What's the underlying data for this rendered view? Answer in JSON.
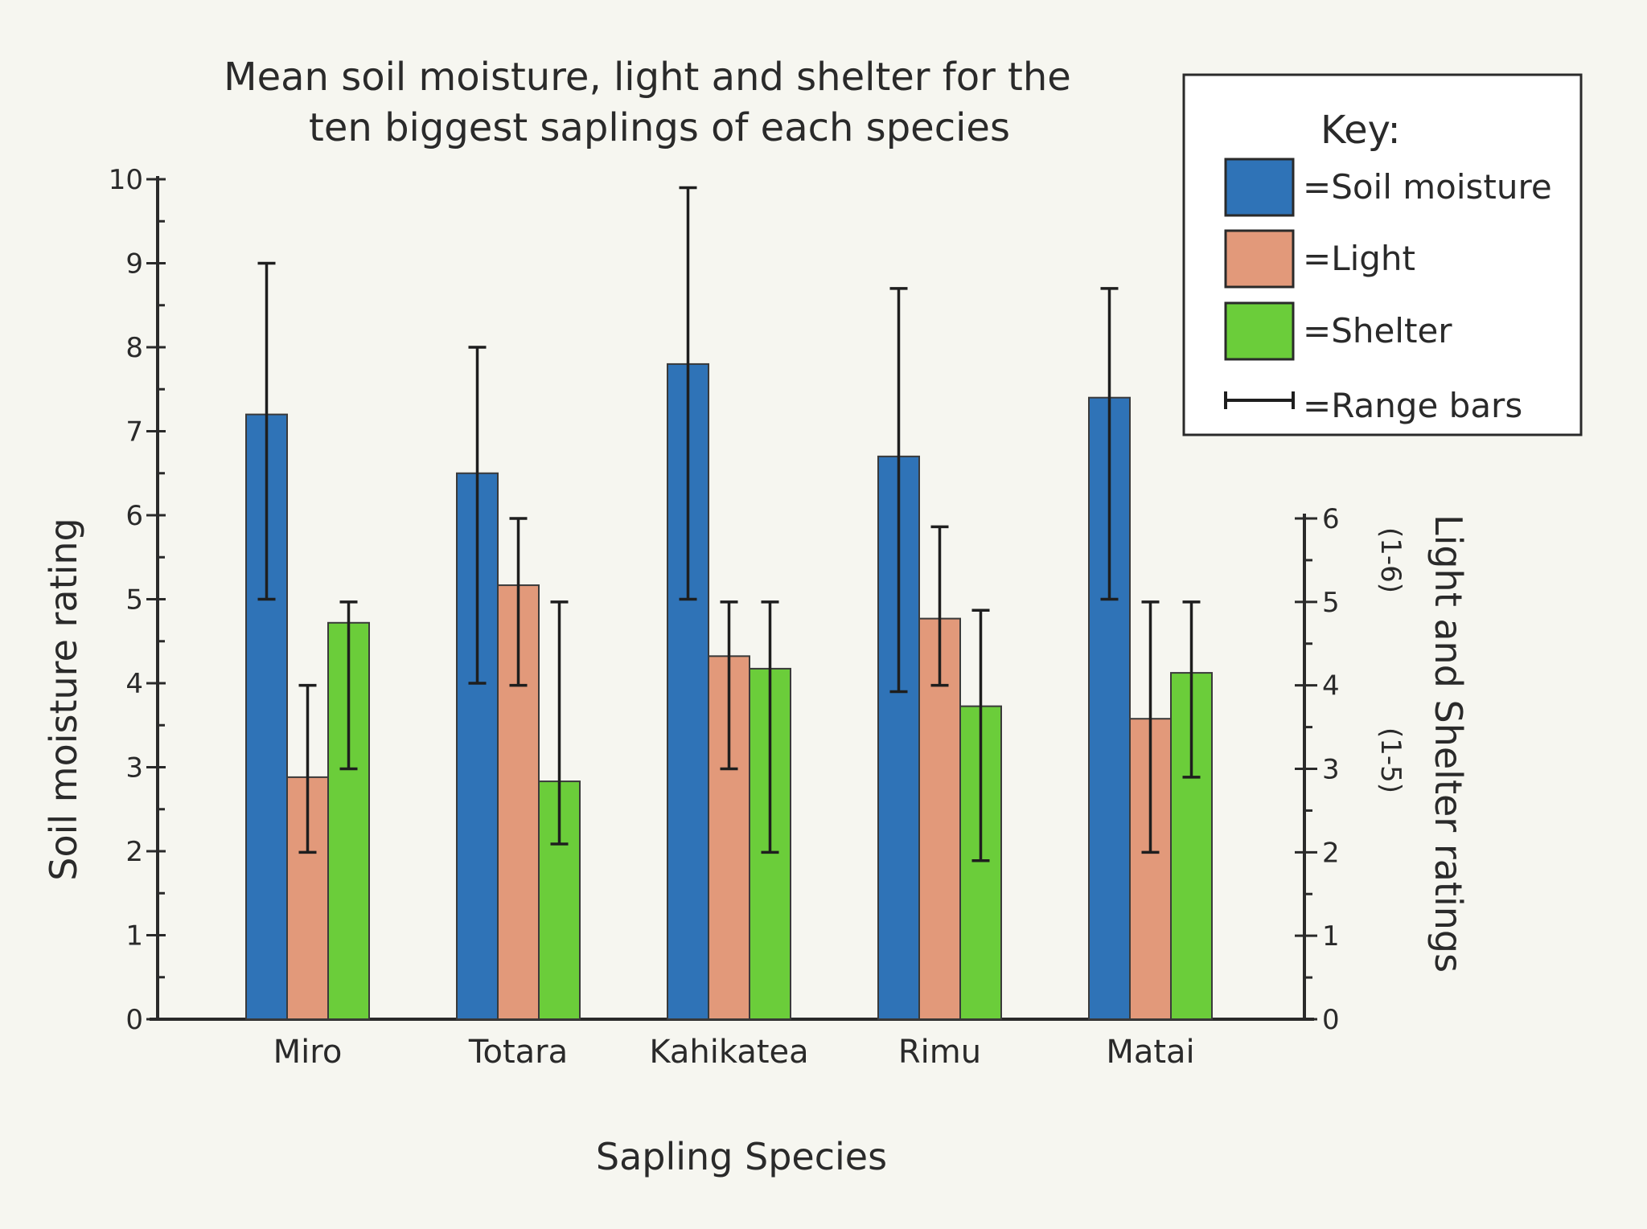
{
  "chart_data": {
    "type": "bar",
    "title_lines": [
      "Mean soil moisture, light and shelter for the",
      "ten biggest saplings of each species"
    ],
    "xlabel": "Sapling Species",
    "ylabel_left": "Soil moisture rating",
    "ylabel_right_lines": [
      "Light and Shelter ratings",
      "(1-6)",
      "(1-5)"
    ],
    "ylim_left": [
      0,
      10
    ],
    "ylim_right": [
      0,
      6
    ],
    "y_ticks_left": [
      "0",
      "1",
      "2",
      "3",
      "4",
      "5",
      "6",
      "7",
      "8",
      "9",
      "10"
    ],
    "y_ticks_right": [
      "0",
      "1",
      "2",
      "3",
      "4",
      "5",
      "6"
    ],
    "categories": [
      "Miro",
      "Totara",
      "Kahikatea",
      "Rimu",
      "Matai"
    ],
    "series": [
      {
        "name": "Soil moisture",
        "axis": "left",
        "color": "#2f73b7",
        "values": [
          7.2,
          6.5,
          7.8,
          6.7,
          7.4
        ],
        "range_low": [
          5.0,
          4.0,
          5.0,
          3.9,
          5.0
        ],
        "range_high": [
          9.0,
          8.0,
          9.9,
          8.7,
          8.7
        ]
      },
      {
        "name": "Light",
        "axis": "right",
        "color": "#e2997a",
        "values": [
          2.9,
          5.2,
          4.35,
          4.8,
          3.6
        ],
        "range_low": [
          2.0,
          4.0,
          3.0,
          4.0,
          2.0
        ],
        "range_high": [
          4.0,
          6.0,
          5.0,
          5.9,
          5.0
        ]
      },
      {
        "name": "Shelter",
        "axis": "right",
        "color": "#6bcd3a",
        "values": [
          4.75,
          2.85,
          4.2,
          3.75,
          4.15
        ],
        "range_low": [
          3.0,
          2.1,
          2.0,
          1.9,
          2.9
        ],
        "range_high": [
          5.0,
          5.0,
          5.0,
          4.9,
          5.0
        ]
      }
    ],
    "legend": {
      "title": "Key:",
      "position": "top-right",
      "items": [
        {
          "label": "=Soil moisture",
          "kind": "swatch",
          "color": "#2f73b7"
        },
        {
          "label": "=Light",
          "kind": "swatch",
          "color": "#e2997a"
        },
        {
          "label": "=Shelter",
          "kind": "swatch",
          "color": "#6bcd3a"
        },
        {
          "label": "=Range bars",
          "kind": "rangebar"
        }
      ]
    },
    "grid": false
  }
}
